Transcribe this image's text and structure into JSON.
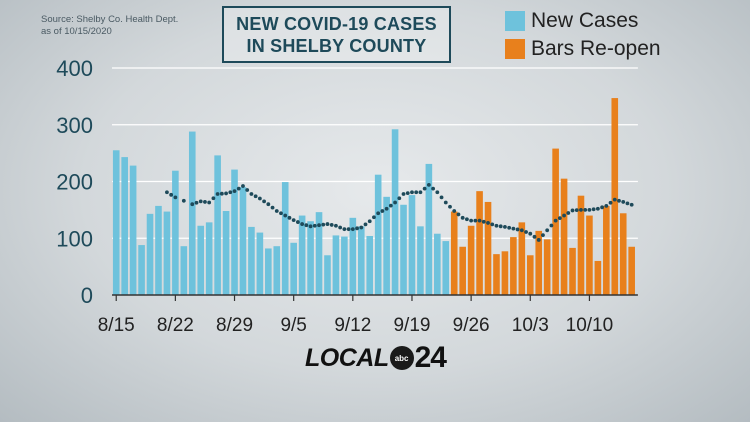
{
  "source_lines": [
    "Source:  Shelby Co. Health Dept.",
    "as of 10/15/2020"
  ],
  "title_lines": [
    "NEW COVID-19 CASES",
    "IN SHELBY COUNTY"
  ],
  "legend": [
    {
      "label": "New Cases",
      "color": "#6ec2dc"
    },
    {
      "label": "Bars Re-open",
      "color": "#e8801c"
    }
  ],
  "colors": {
    "new_cases": "#6ec2dc",
    "bars_reopen": "#e8801c",
    "trend": "#1e4a5a",
    "grid": "#ffffff",
    "axis": "#333333"
  },
  "logo": {
    "text": "LOCAL",
    "badge": "abc",
    "number": "24"
  },
  "chart_data": {
    "type": "bar",
    "ylim": [
      0,
      400
    ],
    "yticks": [
      0,
      100,
      200,
      300,
      400
    ],
    "grid": true,
    "xtick_labels": [
      {
        "label": "8/15",
        "index": 0
      },
      {
        "label": "8/22",
        "index": 7
      },
      {
        "label": "8/29",
        "index": 14
      },
      {
        "label": "9/5",
        "index": 21
      },
      {
        "label": "9/12",
        "index": 28
      },
      {
        "label": "9/19",
        "index": 35
      },
      {
        "label": "9/26",
        "index": 42
      },
      {
        "label": "10/3",
        "index": 49
      },
      {
        "label": "10/10",
        "index": 56
      }
    ],
    "series": [
      {
        "name": "New Cases",
        "color": "#6ec2dc",
        "start_index": 0,
        "values": [
          255,
          243,
          228,
          88,
          143,
          157,
          147,
          219,
          86,
          288,
          122,
          128,
          246,
          148,
          221,
          190,
          120,
          110,
          82,
          86,
          199,
          92,
          140,
          130,
          146,
          70,
          105,
          103,
          136,
          121,
          104,
          212,
          173,
          292,
          159,
          176,
          121,
          231,
          108,
          95
        ]
      },
      {
        "name": "Bars Re-open",
        "color": "#e8801c",
        "start_index": 40,
        "values": [
          147,
          85,
          122,
          183,
          164,
          72,
          77,
          102,
          128,
          70,
          113,
          98,
          258,
          205,
          83,
          175,
          140,
          60,
          157,
          347,
          144,
          85
        ]
      }
    ],
    "trend": {
      "style": "dotted",
      "color": "#1e4a5a",
      "points": [
        [
          6,
          181
        ],
        [
          7,
          172
        ],
        [
          9,
          160
        ],
        [
          10,
          165
        ],
        [
          11,
          163
        ],
        [
          12,
          178
        ],
        [
          13,
          179
        ],
        [
          14,
          183
        ],
        [
          15,
          192
        ],
        [
          16,
          178
        ],
        [
          17,
          170
        ],
        [
          18,
          160
        ],
        [
          19,
          148
        ],
        [
          20,
          140
        ],
        [
          21,
          132
        ],
        [
          22,
          125
        ],
        [
          23,
          121
        ],
        [
          24,
          123
        ],
        [
          25,
          125
        ],
        [
          26,
          122
        ],
        [
          27,
          116
        ],
        [
          28,
          116
        ],
        [
          29,
          119
        ],
        [
          30,
          130
        ],
        [
          31,
          144
        ],
        [
          32,
          152
        ],
        [
          33,
          163
        ],
        [
          34,
          178
        ],
        [
          35,
          181
        ],
        [
          36,
          181
        ],
        [
          37,
          194
        ],
        [
          38,
          181
        ],
        [
          39,
          163
        ],
        [
          40,
          148
        ],
        [
          41,
          136
        ],
        [
          42,
          131
        ],
        [
          43,
          131
        ],
        [
          44,
          127
        ],
        [
          45,
          122
        ],
        [
          46,
          120
        ],
        [
          47,
          117
        ],
        [
          48,
          114
        ],
        [
          49,
          108
        ],
        [
          50,
          97
        ],
        [
          51,
          114
        ],
        [
          52,
          131
        ],
        [
          53,
          140
        ],
        [
          54,
          149
        ],
        [
          55,
          150
        ],
        [
          56,
          150
        ],
        [
          57,
          152
        ],
        [
          58,
          157
        ],
        [
          59,
          168
        ],
        [
          60,
          164
        ],
        [
          61,
          159
        ]
      ]
    }
  }
}
